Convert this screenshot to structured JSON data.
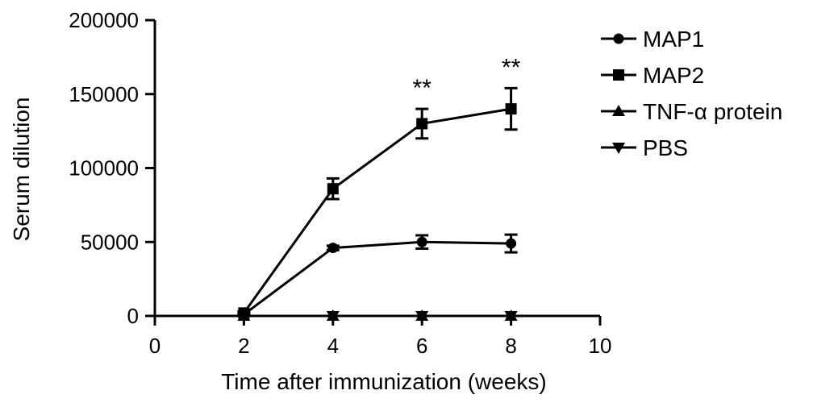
{
  "chart_data": {
    "type": "line",
    "title": "",
    "xlabel": "Time after immunization (weeks)",
    "ylabel": "Serum dilution",
    "xlim": [
      0,
      10
    ],
    "ylim": [
      0,
      200000
    ],
    "xticks": [
      0,
      2,
      4,
      6,
      8,
      10
    ],
    "yticks": [
      0,
      50000,
      100000,
      150000,
      200000
    ],
    "xtick_labels": [
      "0",
      "2",
      "4",
      "6",
      "8",
      "10"
    ],
    "ytick_labels": [
      "0",
      "50000",
      "100000",
      "150000",
      "200000"
    ],
    "grid": false,
    "legend_position": "top-right",
    "x": [
      2,
      4,
      6,
      8
    ],
    "series": [
      {
        "name": "MAP1",
        "marker": "circle",
        "values": [
          1000,
          46000,
          50000,
          49000
        ],
        "errors": [
          500,
          1500,
          4500,
          6000
        ]
      },
      {
        "name": "MAP2",
        "marker": "square",
        "values": [
          2000,
          86000,
          130000,
          140000
        ],
        "errors": [
          1000,
          7000,
          10000,
          14000
        ]
      },
      {
        "name": "TNF-α protein",
        "marker": "triangle-up",
        "values": [
          0,
          0,
          0,
          0
        ],
        "errors": [
          0,
          0,
          0,
          0
        ]
      },
      {
        "name": "PBS",
        "marker": "triangle-down",
        "values": [
          0,
          0,
          0,
          0
        ],
        "errors": [
          0,
          0,
          0,
          0
        ]
      }
    ],
    "annotations": [
      {
        "text": "**",
        "x": 6,
        "series": "MAP2"
      },
      {
        "text": "**",
        "x": 8,
        "series": "MAP2"
      }
    ]
  }
}
